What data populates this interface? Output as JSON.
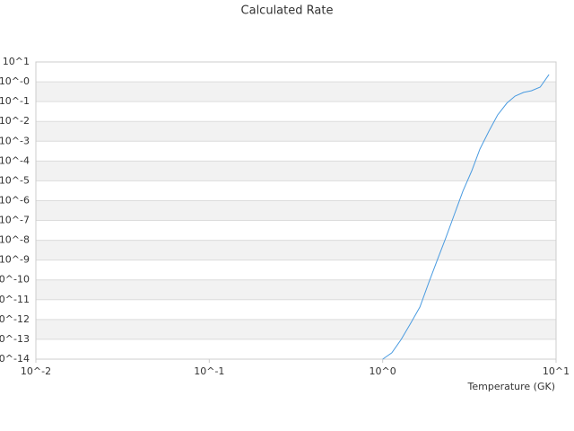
{
  "chart_data": {
    "type": "line",
    "title": "Calculated Rate",
    "x_label": "Temperature (GK)",
    "xscale": "log",
    "yscale": "log",
    "grid": true,
    "bands": true,
    "xlim": [
      0.01,
      10
    ],
    "ylim": [
      1e-14,
      10
    ],
    "xticks": [
      {
        "value": 0.01,
        "label": "10^-2"
      },
      {
        "value": 0.1,
        "label": "10^-1"
      },
      {
        "value": 1,
        "label": "10^0"
      },
      {
        "value": 10,
        "label": "10^1"
      }
    ],
    "yticks": [
      {
        "value": 1e-14,
        "label": "10^-14"
      },
      {
        "value": 1e-13,
        "label": "10^-13"
      },
      {
        "value": 1e-12,
        "label": "10^-12"
      },
      {
        "value": 1e-11,
        "label": "10^-11"
      },
      {
        "value": 1e-10,
        "label": "10^-10"
      },
      {
        "value": 1e-09,
        "label": "10^-9"
      },
      {
        "value": 1e-08,
        "label": "10^-8"
      },
      {
        "value": 1e-07,
        "label": "10^-7"
      },
      {
        "value": 1e-06,
        "label": "10^-6"
      },
      {
        "value": 1e-05,
        "label": "10^-5"
      },
      {
        "value": 0.0001,
        "label": "10^-4"
      },
      {
        "value": 0.001,
        "label": "10^-3"
      },
      {
        "value": 0.01,
        "label": "10^-2"
      },
      {
        "value": 0.1,
        "label": "10^-1"
      },
      {
        "value": 1,
        "label": "10^-0"
      },
      {
        "value": 10,
        "label": "10^1"
      }
    ],
    "x": [
      1.0,
      1.13,
      1.28,
      1.45,
      1.64,
      1.84,
      2.08,
      2.31,
      2.6,
      2.9,
      3.27,
      3.64,
      4.1,
      4.6,
      5.2,
      5.8,
      6.5,
      7.2,
      8.1,
      9.1
    ],
    "series": [
      {
        "color": "#4a9be0",
        "values": [
          1e-14,
          2.1e-14,
          1e-13,
          6.5e-13,
          4.3e-12,
          7e-11,
          1.2e-09,
          1.3e-08,
          2.2e-07,
          3e-06,
          3.3e-05,
          0.0004,
          0.0032,
          0.021,
          0.083,
          0.19,
          0.29,
          0.35,
          0.54,
          2.3
        ]
      }
    ]
  }
}
